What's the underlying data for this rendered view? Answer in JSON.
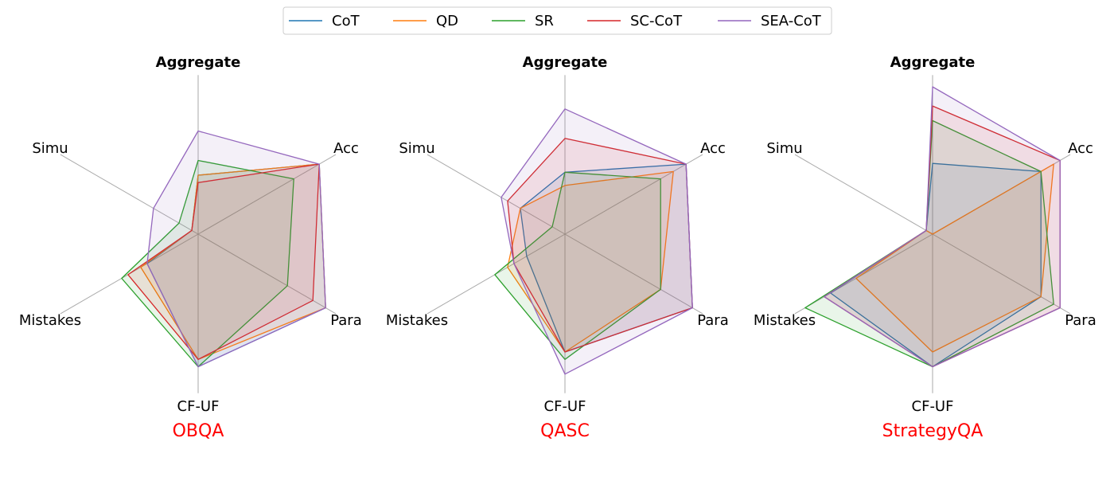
{
  "legend": {
    "placement": "top-center",
    "items": [
      {
        "label": "CoT",
        "color": "#1f77b4"
      },
      {
        "label": "QD",
        "color": "#ff7f0e"
      },
      {
        "label": "SR",
        "color": "#2ca02c"
      },
      {
        "label": "SC-CoT",
        "color": "#d62728"
      },
      {
        "label": "SEA-CoT",
        "color": "#9467bd"
      }
    ]
  },
  "chart_data": [
    {
      "type": "radar",
      "title": "OBQA",
      "title_color": "#ff0000",
      "axes": [
        "Aggregate",
        "Acc",
        "Para",
        "CF-UF",
        "Mistakes",
        "Simu"
      ],
      "rlim": [
        0,
        1
      ],
      "series": [
        {
          "name": "CoT",
          "values": [
            0.4,
            0.95,
            1.0,
            0.9,
            0.4,
            0.05
          ]
        },
        {
          "name": "QD",
          "values": [
            0.4,
            0.95,
            1.0,
            0.85,
            0.45,
            0.05
          ]
        },
        {
          "name": "SR",
          "values": [
            0.5,
            0.75,
            0.7,
            0.9,
            0.6,
            0.15
          ]
        },
        {
          "name": "SC-CoT",
          "values": [
            0.35,
            0.95,
            0.9,
            0.85,
            0.55,
            0.05
          ]
        },
        {
          "name": "SEA-CoT",
          "values": [
            0.7,
            0.95,
            1.0,
            0.9,
            0.4,
            0.35
          ]
        }
      ]
    },
    {
      "type": "radar",
      "title": "QASC",
      "title_color": "#ff0000",
      "axes": [
        "Aggregate",
        "Acc",
        "Para",
        "CF-UF",
        "Mistakes",
        "Simu"
      ],
      "rlim": [
        0,
        1
      ],
      "series": [
        {
          "name": "CoT",
          "values": [
            0.42,
            0.95,
            1.0,
            0.8,
            0.3,
            0.35
          ]
        },
        {
          "name": "QD",
          "values": [
            0.33,
            0.85,
            0.75,
            0.8,
            0.45,
            0.35
          ]
        },
        {
          "name": "SR",
          "values": [
            0.42,
            0.75,
            0.75,
            0.85,
            0.55,
            0.1
          ]
        },
        {
          "name": "SC-CoT",
          "values": [
            0.65,
            0.95,
            1.0,
            0.8,
            0.4,
            0.45
          ]
        },
        {
          "name": "SEA-CoT",
          "values": [
            0.85,
            0.95,
            1.0,
            0.95,
            0.4,
            0.5
          ]
        }
      ]
    },
    {
      "type": "radar",
      "title": "StrategyQA",
      "title_color": "#ff0000",
      "axes": [
        "Aggregate",
        "Acc",
        "Para",
        "CF-UF",
        "Mistakes",
        "Simu"
      ],
      "rlim": [
        0,
        1
      ],
      "series": [
        {
          "name": "CoT",
          "values": [
            0.48,
            0.85,
            0.85,
            0.9,
            0.8,
            0.05
          ]
        },
        {
          "name": "QD",
          "values": [
            0.0,
            0.95,
            0.85,
            0.8,
            0.6,
            0.05
          ]
        },
        {
          "name": "SR",
          "values": [
            0.77,
            0.85,
            0.95,
            0.9,
            1.0,
            0.05
          ]
        },
        {
          "name": "SC-CoT",
          "values": [
            0.87,
            1.0,
            1.0,
            0.9,
            0.85,
            0.05
          ]
        },
        {
          "name": "SEA-CoT",
          "values": [
            1.0,
            1.0,
            1.0,
            0.9,
            0.85,
            0.05
          ]
        }
      ]
    }
  ]
}
